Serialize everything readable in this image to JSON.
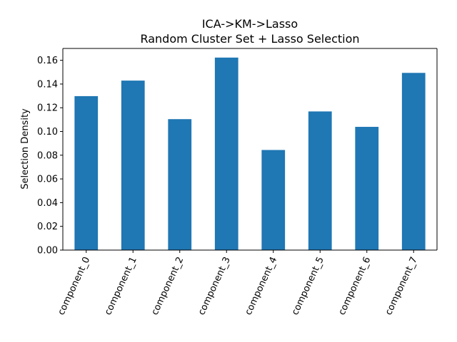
{
  "chart_data": {
    "type": "bar",
    "title": "ICA->KM->Lasso",
    "subtitle": "Random Cluster Set + Lasso Selection",
    "xlabel": "",
    "ylabel": "Selection Density",
    "categories": [
      "component_0",
      "component_1",
      "component_2",
      "component_3",
      "component_4",
      "component_5",
      "component_6",
      "component_7"
    ],
    "values": [
      0.1298,
      0.1429,
      0.1104,
      0.1623,
      0.0844,
      0.1169,
      0.1039,
      0.1494
    ],
    "ylim": [
      0,
      0.17
    ],
    "yticks": [
      0.0,
      0.02,
      0.04,
      0.06,
      0.08,
      0.1,
      0.12,
      0.14,
      0.16
    ],
    "ytick_labels": [
      "0.00",
      "0.02",
      "0.04",
      "0.06",
      "0.08",
      "0.10",
      "0.12",
      "0.14",
      "0.16"
    ],
    "bar_color": "#1f77b4",
    "grid": false,
    "legend": false
  }
}
